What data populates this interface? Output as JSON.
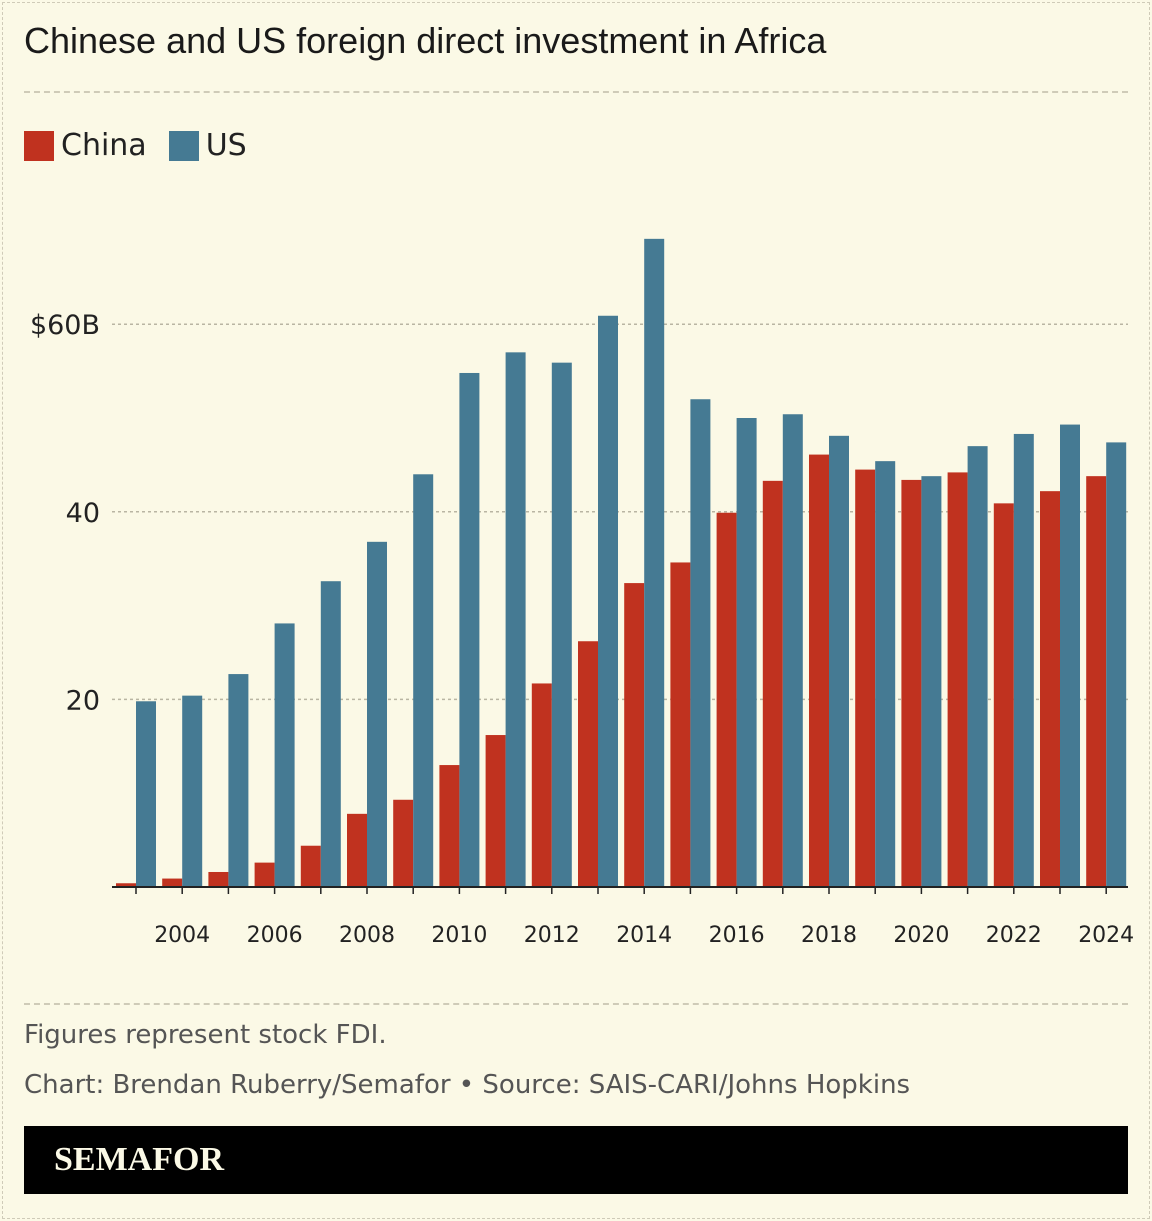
{
  "title": "Chinese and US foreign direct investment in Africa",
  "notes": {
    "note": "Figures represent stock FDI.",
    "credit": "Chart: Brendan Ruberry/Semafor • Source: SAIS-CARI/Johns Hopkins"
  },
  "logo": "SEMAFOR",
  "chart_data": {
    "type": "bar",
    "title": "Chinese and US foreign direct investment in Africa",
    "categories": [
      2003,
      2004,
      2005,
      2006,
      2007,
      2008,
      2009,
      2010,
      2011,
      2012,
      2013,
      2014,
      2015,
      2016,
      2017,
      2018,
      2019,
      2020,
      2021,
      2022,
      2023,
      2024
    ],
    "x_tick_labels": [
      "2004",
      "2006",
      "2008",
      "2010",
      "2012",
      "2014",
      "2016",
      "2018",
      "2020",
      "2022",
      "2024"
    ],
    "y_ticks": [
      {
        "value": 20,
        "label": "20"
      },
      {
        "value": 40,
        "label": "40"
      },
      {
        "value": 60,
        "label": "$60B"
      }
    ],
    "ylim": [
      0,
      70
    ],
    "grid": true,
    "legend_placement": "top-left",
    "series": [
      {
        "name": "China",
        "color": "#c0321f",
        "values": [
          0.4,
          0.9,
          1.6,
          2.6,
          4.4,
          7.8,
          9.3,
          13.0,
          16.2,
          21.7,
          26.2,
          32.4,
          34.6,
          39.9,
          43.3,
          46.1,
          44.5,
          43.4,
          44.2,
          40.9,
          42.2,
          43.8
        ]
      },
      {
        "name": "US",
        "color": "#457a93",
        "values": [
          19.8,
          20.4,
          22.7,
          28.1,
          32.6,
          36.8,
          44.0,
          54.8,
          57.0,
          55.9,
          60.9,
          69.1,
          52.0,
          50.0,
          50.4,
          48.1,
          45.4,
          43.8,
          47.0,
          48.3,
          49.3,
          47.4
        ]
      }
    ]
  }
}
